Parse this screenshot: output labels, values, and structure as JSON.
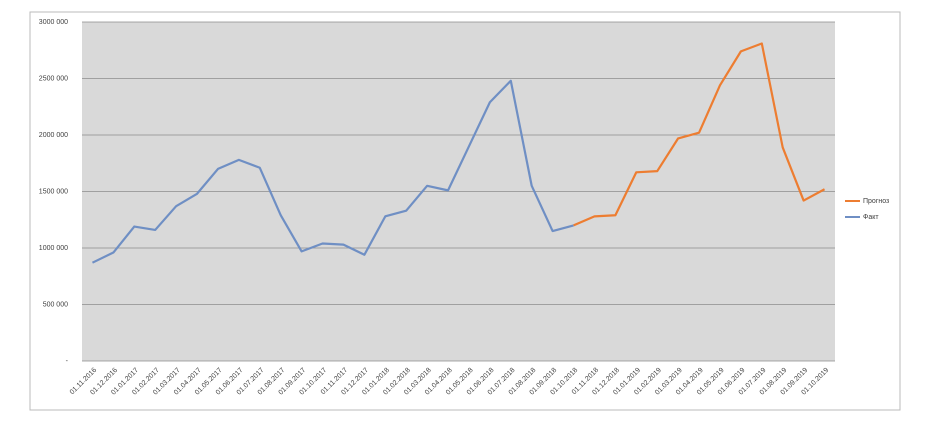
{
  "chart_data": {
    "type": "line",
    "categories": [
      "01.11.2016",
      "01.12.2016",
      "01.01.2017",
      "01.02.2017",
      "01.03.2017",
      "01.04.2017",
      "01.05.2017",
      "01.06.2017",
      "01.07.2017",
      "01.08.2017",
      "01.09.2017",
      "01.10.2017",
      "01.11.2017",
      "01.12.2017",
      "01.01.2018",
      "01.02.2018",
      "01.03.2018",
      "01.04.2018",
      "01.05.2018",
      "01.06.2018",
      "01.07.2018",
      "01.08.2018",
      "01.09.2018",
      "01.10.2018",
      "01.11.2018",
      "01.12.2018",
      "01.01.2019",
      "01.02.2019",
      "01.03.2019",
      "01.04.2019",
      "01.05.2019",
      "01.06.2019",
      "01.07.2019",
      "01.08.2019",
      "01.09.2019",
      "01.10.2019"
    ],
    "series": [
      {
        "name": "Прогноз",
        "color": "#ed7d31",
        "values": [
          null,
          null,
          null,
          null,
          null,
          null,
          null,
          null,
          null,
          null,
          null,
          null,
          null,
          null,
          null,
          null,
          null,
          null,
          null,
          null,
          null,
          null,
          null,
          1200000,
          1280000,
          1290000,
          1670000,
          1680000,
          1970000,
          2020000,
          2440000,
          2740000,
          2810000,
          1890000,
          1420000,
          1520000
        ]
      },
      {
        "name": "Факт",
        "color": "#6f8fc4",
        "values": [
          870000,
          960000,
          1190000,
          1160000,
          1370000,
          1480000,
          1700000,
          1780000,
          1710000,
          1290000,
          970000,
          1040000,
          1030000,
          940000,
          1280000,
          1330000,
          1550000,
          1510000,
          1900000,
          2290000,
          2480000,
          1550000,
          1150000,
          1200000,
          null,
          null,
          null,
          null,
          null,
          null,
          null,
          null,
          null,
          null,
          null,
          null
        ]
      }
    ],
    "ylim": [
      0,
      3000000
    ],
    "yticks": [
      {
        "value": 0,
        "label": "-"
      },
      {
        "value": 500000,
        "label": "500 000"
      },
      {
        "value": 1000000,
        "label": "1000 000"
      },
      {
        "value": 1500000,
        "label": "1500 000"
      },
      {
        "value": 2000000,
        "label": "2000 000"
      },
      {
        "value": 2500000,
        "label": "2500 000"
      },
      {
        "value": 3000000,
        "label": "3000 000"
      }
    ],
    "grid": true,
    "legend": "right"
  }
}
